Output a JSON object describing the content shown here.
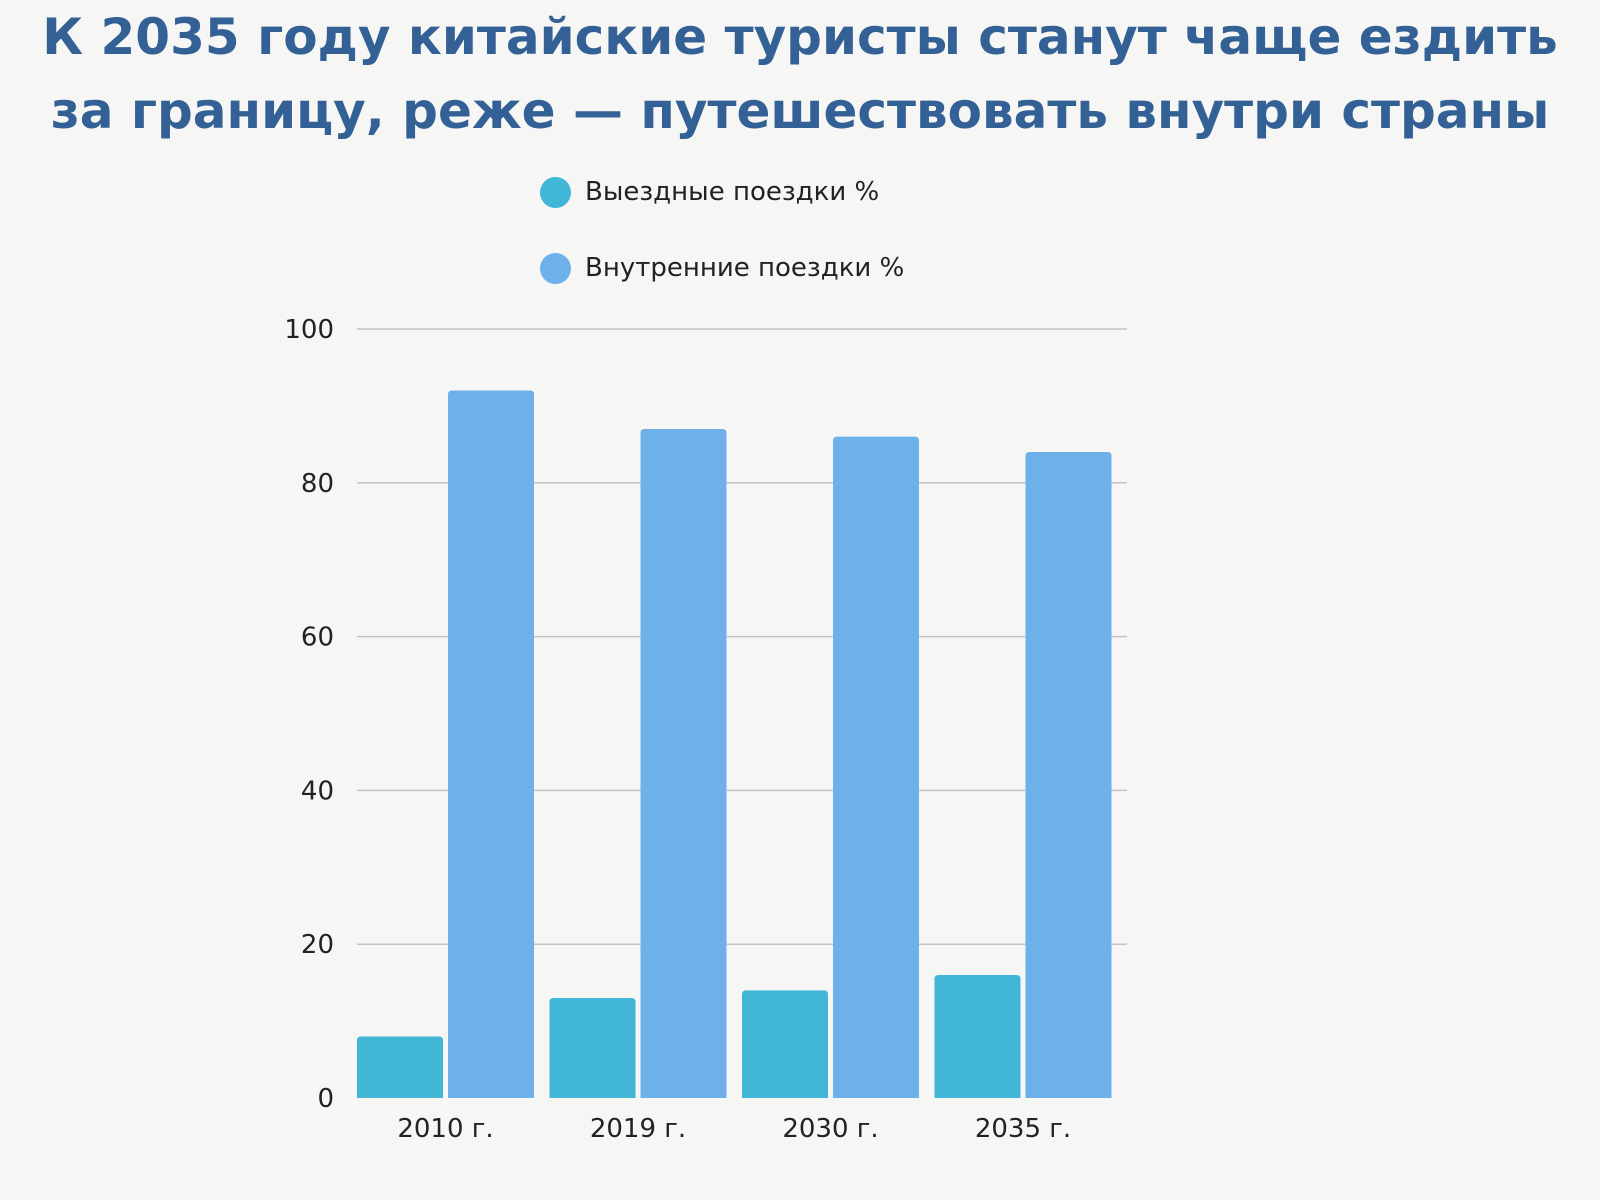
{
  "chart_data": {
    "type": "bar",
    "title_lines": [
      "К 2035 году китайские туристы станут чаще ездить",
      "за границу, реже — путешествовать внутри страны"
    ],
    "categories": [
      "2010 г.",
      "2019 г.",
      "2030 г.",
      "2035 г."
    ],
    "series": [
      {
        "name": "Выездные поездки %",
        "color": "#41b6d6",
        "values": [
          8,
          13,
          14,
          16
        ]
      },
      {
        "name": "Внутренние поездки %",
        "color": "#6db0ea",
        "values": [
          92,
          87,
          86,
          84
        ]
      }
    ],
    "ylim": [
      0,
      100
    ],
    "yticks": [
      "0",
      "20",
      "40",
      "60",
      "80",
      "100"
    ],
    "grid": true,
    "legend_position": "top-center"
  }
}
